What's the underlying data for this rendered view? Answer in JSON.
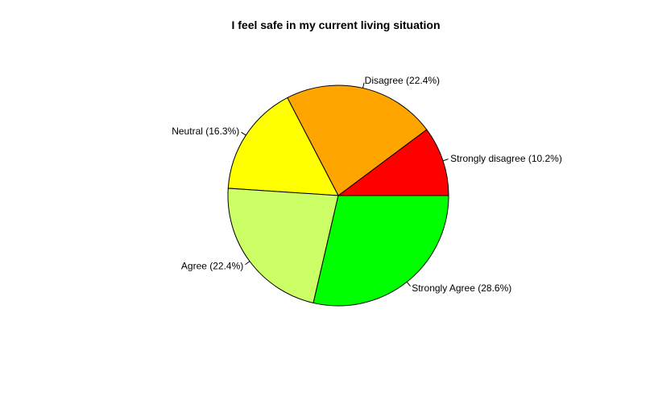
{
  "chart_data": {
    "type": "pie",
    "title": "I feel safe in my current living situation",
    "start_angle_deg": 0,
    "direction": "counterclockwise",
    "slices": [
      {
        "label": "Strongly disagree (10.2%)",
        "value": 10.2,
        "color": "#FF0000"
      },
      {
        "label": "Disagree (22.4%)",
        "value": 22.4,
        "color": "#FFA500"
      },
      {
        "label": "Neutral (16.3%)",
        "value": 16.3,
        "color": "#FFFF00"
      },
      {
        "label": "Agree (22.4%)",
        "value": 22.4,
        "color": "#CCFF66"
      },
      {
        "label": "Strongly Agree (28.6%)",
        "value": 28.6,
        "color": "#00FF00"
      }
    ]
  }
}
